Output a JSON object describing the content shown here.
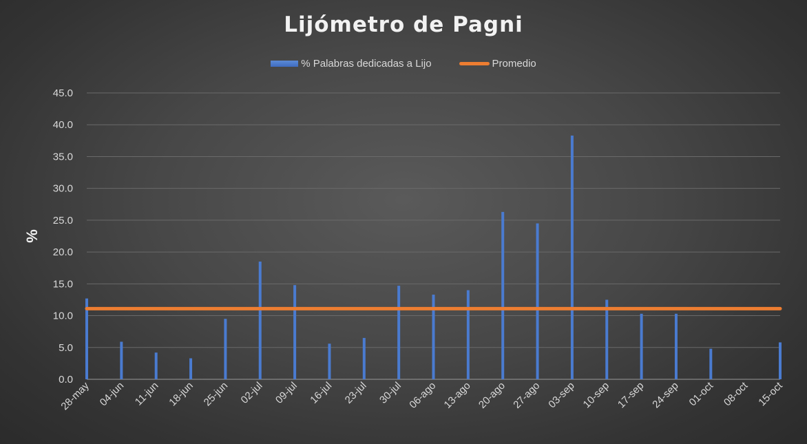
{
  "chart_data": {
    "type": "bar",
    "title": "Lijómetro de Pagni",
    "ylabel": "%",
    "xlabel": "",
    "ylim": [
      0,
      45
    ],
    "yticks": [
      "0.0",
      "5.0",
      "10.0",
      "15.0",
      "20.0",
      "25.0",
      "30.0",
      "35.0",
      "40.0",
      "45.0"
    ],
    "categories": [
      "28-may",
      "04-jun",
      "11-jun",
      "18-jun",
      "25-jun",
      "02-jul",
      "09-jul",
      "16-jul",
      "23-jul",
      "30-jul",
      "06-ago",
      "13-ago",
      "20-ago",
      "27-ago",
      "03-sep",
      "10-sep",
      "17-sep",
      "24-sep",
      "01-oct",
      "08-oct",
      "15-oct"
    ],
    "series": [
      {
        "name": "% Palabras dedicadas a Lijo",
        "type": "bar",
        "color": "#4a7bd0",
        "values": [
          12.7,
          5.9,
          4.2,
          3.3,
          9.5,
          18.5,
          14.8,
          5.6,
          6.5,
          14.7,
          13.3,
          14.0,
          26.3,
          24.5,
          38.3,
          12.5,
          10.3,
          10.3,
          4.8,
          0,
          5.8
        ]
      },
      {
        "name": "Promedio",
        "type": "line",
        "color": "#ed7d31",
        "values": [
          11.1,
          11.1,
          11.1,
          11.1,
          11.1,
          11.1,
          11.1,
          11.1,
          11.1,
          11.1,
          11.1,
          11.1,
          11.1,
          11.1,
          11.1,
          11.1,
          11.1,
          11.1,
          11.1,
          11.1,
          11.1
        ]
      }
    ],
    "grid": true,
    "legend_position": "top"
  }
}
